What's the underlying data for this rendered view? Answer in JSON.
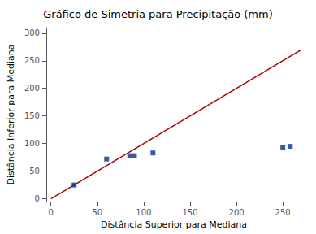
{
  "chart_data": {
    "type": "scatter",
    "title": "Gráfico de Simetria para Precipitação (mm)",
    "xlabel": "Distância Superior para Mediana",
    "ylabel": "Distância Inferior para Mediana",
    "series": [
      {
        "type": "scatter",
        "color": "#003399",
        "marker": "square",
        "x": [
          25,
          60,
          85,
          90,
          110,
          250,
          258
        ],
        "values": [
          25,
          72,
          78,
          78,
          83,
          93,
          95
        ]
      },
      {
        "type": "line",
        "color": "#aa0000",
        "x": [
          0,
          270
        ],
        "values": [
          0,
          270
        ]
      }
    ],
    "xlim": [
      -5,
      270
    ],
    "ylim": [
      -5,
      310
    ],
    "xticks": [
      0,
      50,
      100,
      150,
      200,
      250
    ],
    "yticks": [
      0,
      50,
      100,
      150,
      200,
      250,
      300
    ],
    "grid": false
  }
}
